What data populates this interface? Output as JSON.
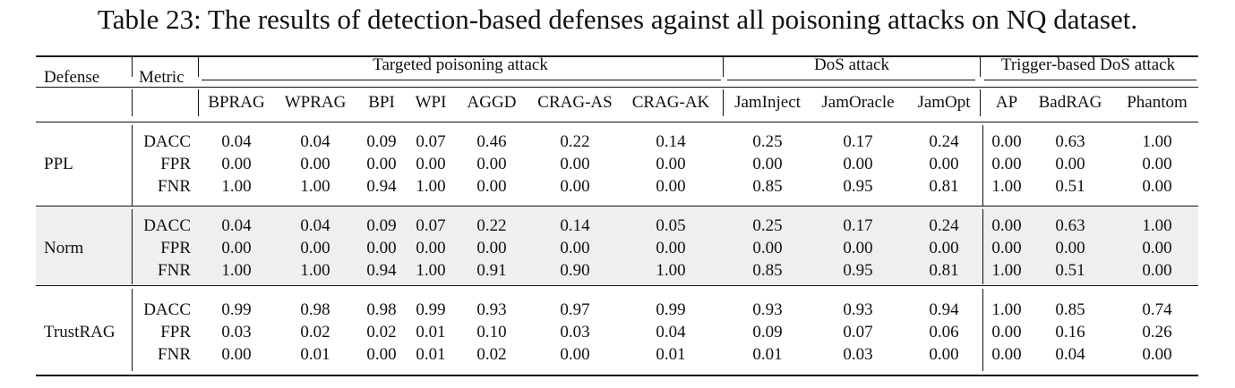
{
  "caption": "Table 23: The results of detection-based defenses against all poisoning attacks on NQ dataset.",
  "header": {
    "defense": "Defense",
    "metric": "Metric",
    "groups": [
      "Targeted poisoning attack",
      "DoS attack",
      "Trigger-based DoS attack"
    ],
    "columns": [
      "BPRAG",
      "WPRAG",
      "BPI",
      "WPI",
      "AGGD",
      "CRAG-AS",
      "CRAG-AK",
      "JamInject",
      "JamOracle",
      "JamOpt",
      "AP",
      "BadRAG",
      "Phantom"
    ]
  },
  "rows": [
    {
      "defense": "PPL",
      "metrics": [
        {
          "name": "DACC",
          "values": [
            "0.04",
            "0.04",
            "0.09",
            "0.07",
            "0.46",
            "0.22",
            "0.14",
            "0.25",
            "0.17",
            "0.24",
            "0.00",
            "0.63",
            "1.00"
          ]
        },
        {
          "name": "FPR",
          "values": [
            "0.00",
            "0.00",
            "0.00",
            "0.00",
            "0.00",
            "0.00",
            "0.00",
            "0.00",
            "0.00",
            "0.00",
            "0.00",
            "0.00",
            "0.00"
          ]
        },
        {
          "name": "FNR",
          "values": [
            "1.00",
            "1.00",
            "0.94",
            "1.00",
            "0.00",
            "0.00",
            "0.00",
            "0.85",
            "0.95",
            "0.81",
            "1.00",
            "0.51",
            "0.00"
          ]
        }
      ]
    },
    {
      "defense": "Norm",
      "metrics": [
        {
          "name": "DACC",
          "values": [
            "0.04",
            "0.04",
            "0.09",
            "0.07",
            "0.22",
            "0.14",
            "0.05",
            "0.25",
            "0.17",
            "0.24",
            "0.00",
            "0.63",
            "1.00"
          ]
        },
        {
          "name": "FPR",
          "values": [
            "0.00",
            "0.00",
            "0.00",
            "0.00",
            "0.00",
            "0.00",
            "0.00",
            "0.00",
            "0.00",
            "0.00",
            "0.00",
            "0.00",
            "0.00"
          ]
        },
        {
          "name": "FNR",
          "values": [
            "1.00",
            "1.00",
            "0.94",
            "1.00",
            "0.91",
            "0.90",
            "1.00",
            "0.85",
            "0.95",
            "0.81",
            "1.00",
            "0.51",
            "0.00"
          ]
        }
      ]
    },
    {
      "defense": "TrustRAG",
      "metrics": [
        {
          "name": "DACC",
          "values": [
            "0.99",
            "0.98",
            "0.98",
            "0.99",
            "0.93",
            "0.97",
            "0.99",
            "0.93",
            "0.93",
            "0.94",
            "1.00",
            "0.85",
            "0.74"
          ]
        },
        {
          "name": "FPR",
          "values": [
            "0.03",
            "0.02",
            "0.02",
            "0.01",
            "0.10",
            "0.03",
            "0.04",
            "0.09",
            "0.07",
            "0.06",
            "0.00",
            "0.16",
            "0.26"
          ]
        },
        {
          "name": "FNR",
          "values": [
            "0.00",
            "0.01",
            "0.00",
            "0.01",
            "0.02",
            "0.00",
            "0.01",
            "0.01",
            "0.03",
            "0.00",
            "0.00",
            "0.04",
            "0.00"
          ]
        }
      ]
    }
  ]
}
